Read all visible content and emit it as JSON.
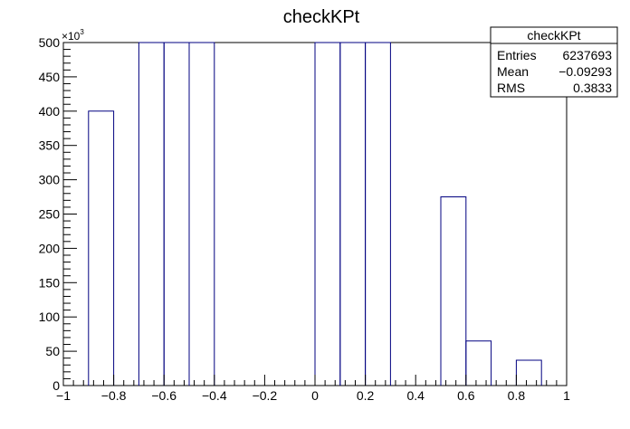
{
  "chart_data": {
    "type": "bar",
    "title": "checkKPt",
    "xlabel": "",
    "ylabel": "",
    "y_multiplier": "×10",
    "y_multiplier_exp": "3",
    "xlim": [
      -1,
      1
    ],
    "ylim": [
      0,
      500
    ],
    "x_ticks": [
      "−1",
      "−0.8",
      "−0.6",
      "−0.4",
      "−0.2",
      "0",
      "0.2",
      "0.4",
      "0.6",
      "0.8",
      "1"
    ],
    "y_ticks": [
      "0",
      "50",
      "100",
      "150",
      "200",
      "250",
      "300",
      "350",
      "400",
      "450",
      "500"
    ],
    "bin_width": 0.1,
    "bins": [
      {
        "x_low": -0.9,
        "value": 400
      },
      {
        "x_low": -0.7,
        "value": 500
      },
      {
        "x_low": -0.6,
        "value": 500
      },
      {
        "x_low": -0.5,
        "value": 500
      },
      {
        "x_low": 0.0,
        "value": 500
      },
      {
        "x_low": 0.1,
        "value": 500
      },
      {
        "x_low": 0.2,
        "value": 500
      },
      {
        "x_low": 0.5,
        "value": 275
      },
      {
        "x_low": 0.6,
        "value": 65
      },
      {
        "x_low": 0.8,
        "value": 37
      }
    ],
    "grid": false,
    "line_color": "#000080",
    "stats_box": {
      "title": "checkKPt",
      "rows": [
        {
          "label": "Entries",
          "value": "6237693"
        },
        {
          "label": "Mean",
          "value": "−0.09293"
        },
        {
          "label": "RMS",
          "value": "0.3833"
        }
      ]
    }
  }
}
